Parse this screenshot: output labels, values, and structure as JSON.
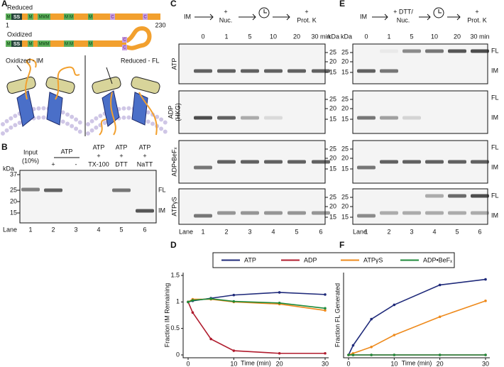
{
  "panels": {
    "a": "A",
    "b": "B",
    "c": "C",
    "d": "D",
    "e": "E",
    "f": "F"
  },
  "panel_a": {
    "reduced": "Reduced",
    "oxidized": "Oxidized",
    "ss": "SS",
    "m": "M",
    "mmm": "MMM",
    "c": "C",
    "start": "1",
    "end": "230",
    "left_state": "Oxidized - IM",
    "right_state": "Reduced - FL"
  },
  "panel_b": {
    "kda": "kDa",
    "mw": [
      37,
      25,
      20,
      15
    ],
    "atp": "ATP",
    "conditions": [
      [
        "Input",
        "(10%)"
      ],
      [
        "+"
      ],
      [
        "-"
      ],
      [
        "ATP",
        "+",
        "TX-100"
      ],
      [
        "ATP",
        "+",
        "DTT"
      ],
      [
        "ATP",
        "+",
        "NaTT"
      ]
    ],
    "bands": [
      "FL",
      "IM"
    ],
    "lane": "Lane",
    "lanes": [
      "1",
      "2",
      "3",
      "4",
      "5",
      "6"
    ]
  },
  "panel_c": {
    "steps": [
      [
        "IM"
      ],
      [
        "+",
        "Nuc."
      ],
      [
        "+",
        "Prot. K"
      ]
    ],
    "times": [
      "0",
      "1",
      "5",
      "10",
      "20",
      "30 min"
    ],
    "kda": "kDa",
    "rows": [
      [
        "ATP"
      ],
      [
        "ADP",
        "(HKG)"
      ],
      [
        "ADP•BeFₓ"
      ],
      [
        "ATPγS"
      ]
    ],
    "mw": [
      25,
      20,
      15
    ],
    "lane": "Lane",
    "lanes": [
      "1",
      "2",
      "3",
      "4",
      "5",
      "6"
    ]
  },
  "panel_e": {
    "steps": [
      [
        "IM"
      ],
      [
        "+ DTT/",
        "Nuc."
      ],
      [
        "+",
        "Prot. K"
      ]
    ],
    "times": [
      "0",
      "1",
      "5",
      "10",
      "20",
      "30 min"
    ],
    "kda": "kDa",
    "mw": [
      25,
      20,
      15
    ],
    "bands": [
      "FL",
      "IM"
    ],
    "lane": "Lane",
    "lanes": [
      "1",
      "2",
      "3",
      "4",
      "5",
      "6"
    ]
  },
  "chart_data": [
    {
      "type": "line",
      "ylabel": "Fraction IM Remaining",
      "xlabel": "Time (min)",
      "x": [
        0,
        1,
        5,
        10,
        20,
        30
      ],
      "xlim": [
        0,
        30
      ],
      "xticks": [
        0,
        10,
        20,
        30
      ],
      "ylim": [
        0,
        1.5
      ],
      "yticks": [
        0,
        0.5,
        1,
        1.5
      ],
      "series": [
        {
          "name": "ATP",
          "color": "#1f2a7a",
          "values": [
            1,
            1.02,
            1.07,
            1.13,
            1.18,
            1.14
          ]
        },
        {
          "name": "ADP",
          "color": "#b01c2e",
          "values": [
            1,
            0.8,
            0.3,
            0.08,
            0.03,
            0.03
          ]
        },
        {
          "name": "ATPγS",
          "color": "#ee8a1c",
          "values": [
            1,
            1.05,
            1.05,
            1.0,
            0.96,
            0.84
          ]
        },
        {
          "name": "ADP•BeFₓ",
          "color": "#1e8a3a",
          "values": [
            1,
            1.03,
            1.06,
            1.01,
            0.98,
            0.88
          ]
        }
      ]
    },
    {
      "type": "line",
      "ylabel": "Fraction FL Generated",
      "xlabel": "Time (min)",
      "x": [
        0,
        1,
        5,
        10,
        20,
        30
      ],
      "xlim": [
        0,
        30
      ],
      "xticks": [
        0,
        10,
        20,
        30
      ],
      "ylim": [
        0,
        1
      ],
      "series": [
        {
          "color": "#1f2a7a",
          "values": [
            0,
            0.12,
            0.45,
            0.63,
            0.88,
            0.95
          ]
        },
        {
          "color": "#b01c2e",
          "values": [
            0,
            0,
            0,
            0,
            0,
            0
          ]
        },
        {
          "color": "#ee8a1c",
          "values": [
            0,
            0.02,
            0.1,
            0.25,
            0.48,
            0.68
          ]
        },
        {
          "color": "#1e8a3a",
          "values": [
            0,
            0,
            0,
            0,
            0,
            0
          ]
        }
      ]
    }
  ]
}
